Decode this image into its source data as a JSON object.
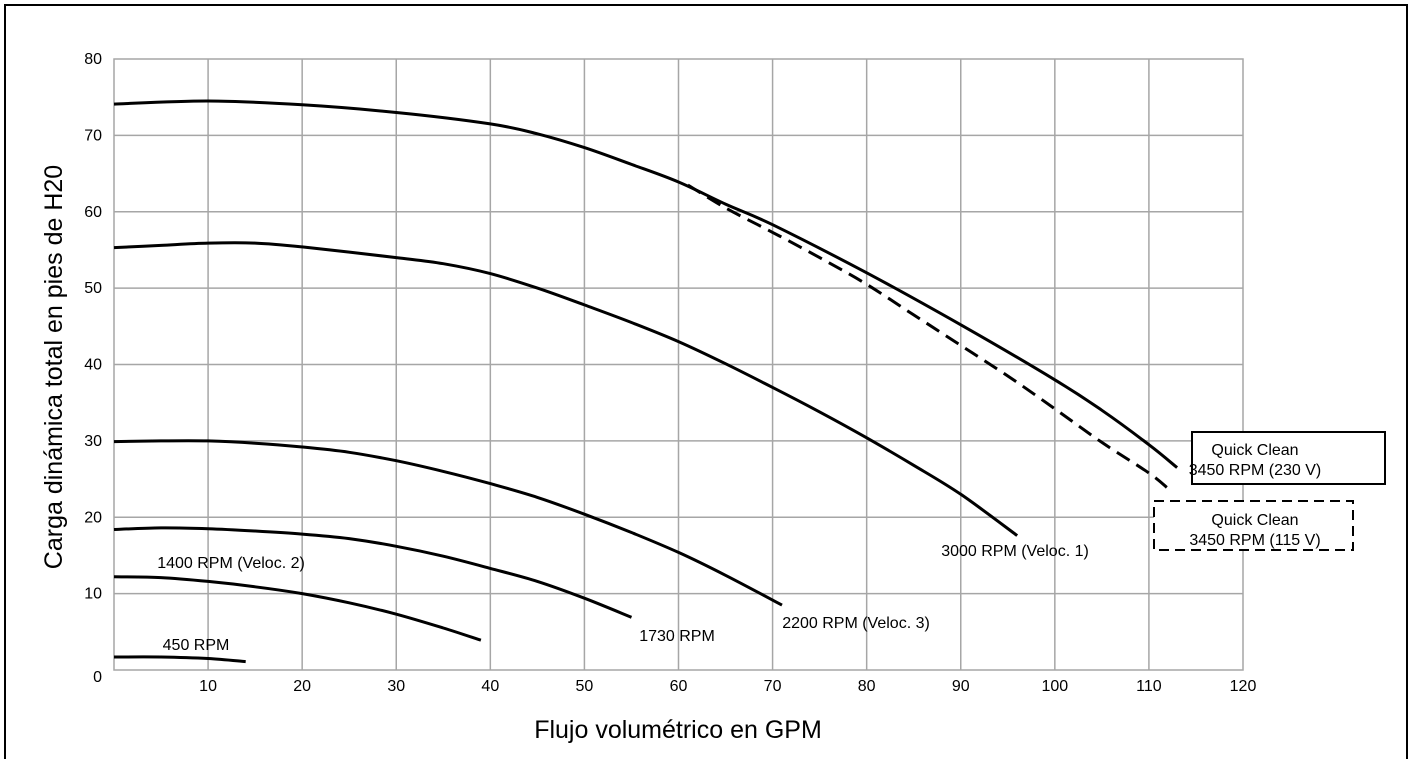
{
  "chart_data": {
    "type": "line",
    "xlabel": "Flujo volumétrico en GPM",
    "ylabel": "Carga dinámica total en pies de H20",
    "xlim": [
      0,
      120
    ],
    "ylim": [
      0,
      80
    ],
    "x_ticks": [
      "10",
      "20",
      "30",
      "40",
      "50",
      "60",
      "70",
      "80",
      "90",
      "100",
      "110",
      "120"
    ],
    "y_ticks": [
      "0",
      "10",
      "20",
      "30",
      "40",
      "50",
      "60",
      "70",
      "80"
    ],
    "grid": true,
    "series": [
      {
        "name": "Quick Clean 3450 RPM (230 V)",
        "label_lines": [
          "Quick Clean",
          "3450 RPM (230 V)"
        ],
        "label_box": "solid",
        "dashed": false,
        "x": [
          0,
          10,
          20,
          30,
          40,
          45,
          50,
          55,
          60,
          65,
          70,
          80,
          90,
          100,
          105,
          110,
          113
        ],
        "y": [
          74.1,
          74.5,
          74.0,
          73.0,
          71.5,
          70.2,
          68.4,
          66.2,
          63.9,
          61.0,
          58.3,
          52.0,
          45.2,
          38.0,
          34.0,
          29.5,
          26.5
        ]
      },
      {
        "name": "Quick Clean 3450 RPM (115 V)",
        "label_lines": [
          "Quick Clean",
          "3450 RPM (115 V)"
        ],
        "label_box": "dashed",
        "dashed": true,
        "x": [
          61,
          65,
          70,
          75,
          80,
          85,
          90,
          95,
          100,
          105,
          110,
          112
        ],
        "y": [
          63.5,
          60.5,
          57.3,
          54.0,
          50.5,
          46.5,
          42.5,
          38.5,
          34.2,
          29.8,
          25.8,
          23.8
        ]
      },
      {
        "name": "3000 RPM (Veloc. 1)",
        "label_lines": [
          "3000 RPM (Veloc. 1)"
        ],
        "dashed": false,
        "x": [
          0,
          5,
          10,
          15,
          20,
          30,
          35,
          40,
          45,
          50,
          55,
          60,
          65,
          70,
          75,
          80,
          85,
          90,
          96
        ],
        "y": [
          55.3,
          55.6,
          55.9,
          55.9,
          55.4,
          54.0,
          53.2,
          51.9,
          50.0,
          47.8,
          45.5,
          43.0,
          40.1,
          37.0,
          33.8,
          30.4,
          26.8,
          23.0,
          17.6
        ]
      },
      {
        "name": "2200 RPM (Veloc. 3)",
        "label_lines": [
          "2200 RPM (Veloc. 3)"
        ],
        "dashed": false,
        "x": [
          0,
          5,
          10,
          15,
          20,
          25,
          30,
          35,
          40,
          45,
          50,
          55,
          60,
          65,
          71
        ],
        "y": [
          29.9,
          30.0,
          30.0,
          29.7,
          29.2,
          28.5,
          27.4,
          26.0,
          24.4,
          22.6,
          20.4,
          18.0,
          15.4,
          12.4,
          8.5
        ]
      },
      {
        "name": "1730 RPM",
        "label_lines": [
          "1730 RPM"
        ],
        "dashed": false,
        "x": [
          0,
          5,
          10,
          15,
          20,
          25,
          30,
          35,
          40,
          45,
          50,
          55
        ],
        "y": [
          18.4,
          18.6,
          18.5,
          18.2,
          17.8,
          17.2,
          16.2,
          14.9,
          13.3,
          11.6,
          9.4,
          6.9
        ]
      },
      {
        "name": "1400 RPM (Veloc. 2)",
        "label_lines": [
          "1400 RPM (Veloc. 2)"
        ],
        "dashed": false,
        "x": [
          0,
          5,
          10,
          15,
          20,
          25,
          30,
          35,
          39
        ],
        "y": [
          12.2,
          12.1,
          11.6,
          10.9,
          10.0,
          8.8,
          7.3,
          5.5,
          3.9
        ]
      },
      {
        "name": "450 RPM",
        "label_lines": [
          "450 RPM"
        ],
        "dashed": false,
        "x": [
          0,
          5,
          10,
          14
        ],
        "y": [
          1.7,
          1.7,
          1.5,
          1.1
        ]
      }
    ]
  }
}
